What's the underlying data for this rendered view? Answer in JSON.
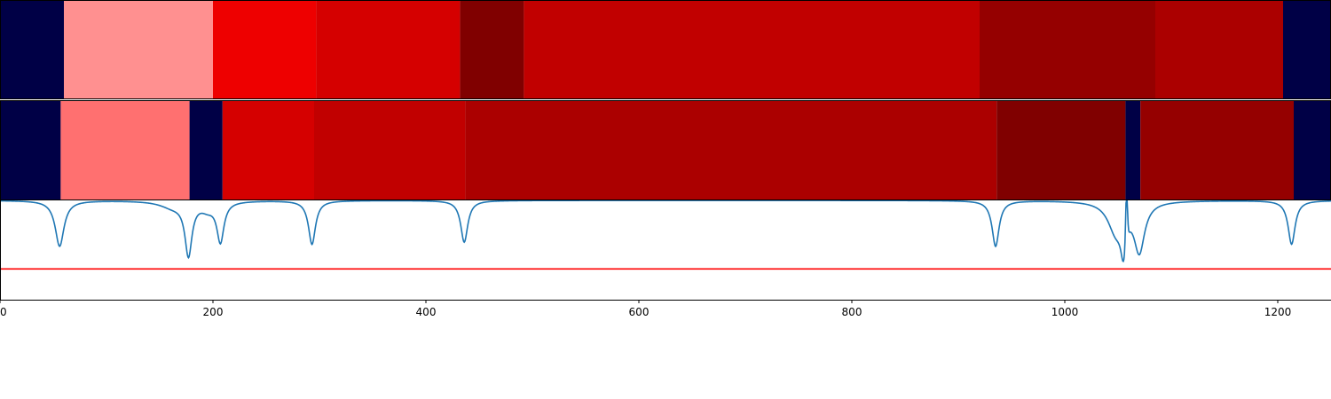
{
  "chart_data": [
    {
      "type": "heatmap",
      "xlim": [
        0,
        1250
      ],
      "segments": [
        {
          "start": 0,
          "end": 60,
          "color": "#000046"
        },
        {
          "start": 60,
          "end": 200,
          "color": "#ff9090"
        },
        {
          "start": 200,
          "end": 297,
          "color": "#ee0000"
        },
        {
          "start": 297,
          "end": 432,
          "color": "#d50000"
        },
        {
          "start": 432,
          "end": 492,
          "color": "#800000"
        },
        {
          "start": 492,
          "end": 920,
          "color": "#c10000"
        },
        {
          "start": 920,
          "end": 1085,
          "color": "#950000"
        },
        {
          "start": 1085,
          "end": 1205,
          "color": "#ab0000"
        },
        {
          "start": 1205,
          "end": 1250,
          "color": "#000046"
        }
      ]
    },
    {
      "type": "heatmap",
      "xlim": [
        0,
        1250
      ],
      "segments": [
        {
          "start": 0,
          "end": 57,
          "color": "#000046"
        },
        {
          "start": 57,
          "end": 178,
          "color": "#ff7070"
        },
        {
          "start": 178,
          "end": 209,
          "color": "#000046"
        },
        {
          "start": 209,
          "end": 295,
          "color": "#d50000"
        },
        {
          "start": 295,
          "end": 437,
          "color": "#c10000"
        },
        {
          "start": 437,
          "end": 936,
          "color": "#ab0000"
        },
        {
          "start": 936,
          "end": 1057,
          "color": "#800000"
        },
        {
          "start": 1057,
          "end": 1071,
          "color": "#000046"
        },
        {
          "start": 1071,
          "end": 1215,
          "color": "#950000"
        },
        {
          "start": 1215,
          "end": 1250,
          "color": "#000046"
        }
      ]
    },
    {
      "type": "line",
      "xlim": [
        0,
        1250
      ],
      "ylim": [
        0,
        1
      ],
      "xticks": [
        0,
        200,
        400,
        600,
        800,
        1000,
        1200
      ],
      "xtick_labels": [
        "0",
        "200",
        "400",
        "600",
        "800",
        "1000",
        "1200"
      ],
      "baseline": 1.0,
      "threshold": 0.31,
      "line_color": "#1f77b4",
      "threshold_color": "#ff0000",
      "dips": [
        {
          "center": 56,
          "depth": 0.46,
          "width": 5
        },
        {
          "center": 162,
          "depth": 0.06,
          "width": 14
        },
        {
          "center": 177,
          "depth": 0.53,
          "width": 4
        },
        {
          "center": 195,
          "depth": 0.07,
          "width": 8
        },
        {
          "center": 207,
          "depth": 0.4,
          "width": 4
        },
        {
          "center": 293,
          "depth": 0.44,
          "width": 4
        },
        {
          "center": 436,
          "depth": 0.42,
          "width": 4
        },
        {
          "center": 935,
          "depth": 0.46,
          "width": 4
        },
        {
          "center": 1048,
          "depth": 0.3,
          "width": 9
        },
        {
          "center": 1055,
          "depth": 0.36,
          "width": 3
        },
        {
          "center": 1070,
          "depth": 0.49,
          "width": 6
        },
        {
          "center": 1213,
          "depth": 0.44,
          "width": 4
        }
      ],
      "spikes": [
        {
          "center": 1058,
          "height": 0.5,
          "width": 1.2
        }
      ]
    }
  ]
}
